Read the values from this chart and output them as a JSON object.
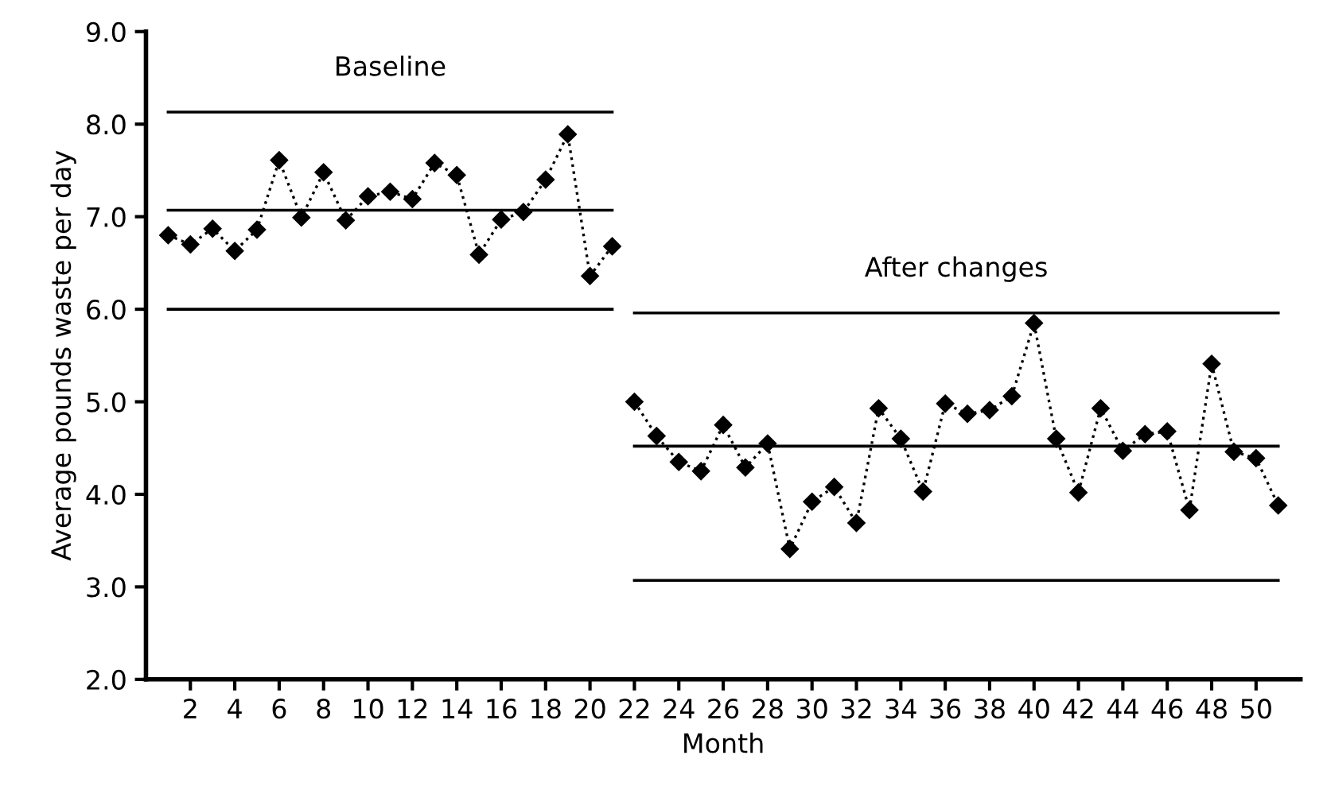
{
  "chart_data": {
    "type": "line",
    "xlabel": "Month",
    "ylabel": "Average pounds waste per day",
    "xlim": [
      0,
      52
    ],
    "xticks": [
      2,
      4,
      6,
      8,
      10,
      12,
      14,
      16,
      18,
      20,
      22,
      24,
      26,
      28,
      30,
      32,
      34,
      36,
      38,
      40,
      42,
      44,
      46,
      48,
      50
    ],
    "ylim": [
      2.0,
      9.0
    ],
    "yticks": [
      {
        "value": 2,
        "label": "2.0"
      },
      {
        "value": 3,
        "label": "3.0"
      },
      {
        "value": 4,
        "label": "4.0"
      },
      {
        "value": 5,
        "label": "5.0"
      },
      {
        "value": 6,
        "label": "6.0"
      },
      {
        "value": 7,
        "label": "7.0"
      },
      {
        "value": 8,
        "label": "8.0"
      },
      {
        "value": 9,
        "label": "9.0"
      }
    ],
    "grid": false,
    "series": [
      {
        "color": "#000000",
        "marker": "diamond",
        "line_style": "dotted",
        "x": [
          1,
          2,
          3,
          4,
          5,
          6,
          7,
          8,
          9,
          10,
          11,
          12,
          13,
          14,
          15,
          16,
          17,
          18,
          19,
          20,
          21
        ],
        "values": [
          6.8,
          6.7,
          6.87,
          6.63,
          6.86,
          7.61,
          6.99,
          7.48,
          6.96,
          7.22,
          7.27,
          7.19,
          7.58,
          7.45,
          6.59,
          6.97,
          7.05,
          7.4,
          7.89,
          6.36,
          6.68
        ]
      },
      {
        "color": "#000000",
        "marker": "diamond",
        "line_style": "dotted",
        "x": [
          22,
          23,
          24,
          25,
          26,
          27,
          28,
          29,
          30,
          31,
          32,
          33,
          34,
          35,
          36,
          37,
          38,
          39,
          40,
          41,
          42,
          43,
          44,
          45,
          46,
          47,
          48,
          49,
          50,
          51
        ],
        "values": [
          5.0,
          4.63,
          4.35,
          4.25,
          4.75,
          4.29,
          4.55,
          3.41,
          3.92,
          4.08,
          3.69,
          4.93,
          4.6,
          4.03,
          4.98,
          4.87,
          4.91,
          5.06,
          5.85,
          4.6,
          4.02,
          4.93,
          4.47,
          4.65,
          4.68,
          3.83,
          5.41,
          4.46,
          4.39,
          3.88
        ]
      },
      {
        "color": "#000000",
        "marker": "none",
        "line_style": "solid",
        "x": [
          1,
          21
        ],
        "values": [
          8.13,
          8.13
        ]
      },
      {
        "color": "#000000",
        "marker": "none",
        "line_style": "solid",
        "x": [
          1,
          21
        ],
        "values": [
          7.07,
          7.07
        ]
      },
      {
        "color": "#000000",
        "marker": "none",
        "line_style": "solid",
        "x": [
          1,
          21
        ],
        "values": [
          6.0,
          6.0
        ]
      },
      {
        "color": "#000000",
        "marker": "none",
        "line_style": "solid",
        "x": [
          22,
          51
        ],
        "values": [
          5.96,
          5.96
        ]
      },
      {
        "color": "#000000",
        "marker": "none",
        "line_style": "solid",
        "x": [
          22,
          51
        ],
        "values": [
          4.52,
          4.52
        ]
      },
      {
        "color": "#000000",
        "marker": "none",
        "line_style": "solid",
        "x": [
          22,
          51
        ],
        "values": [
          3.07,
          3.07
        ]
      }
    ],
    "annotations": [
      "Baseline",
      "After changes"
    ]
  }
}
